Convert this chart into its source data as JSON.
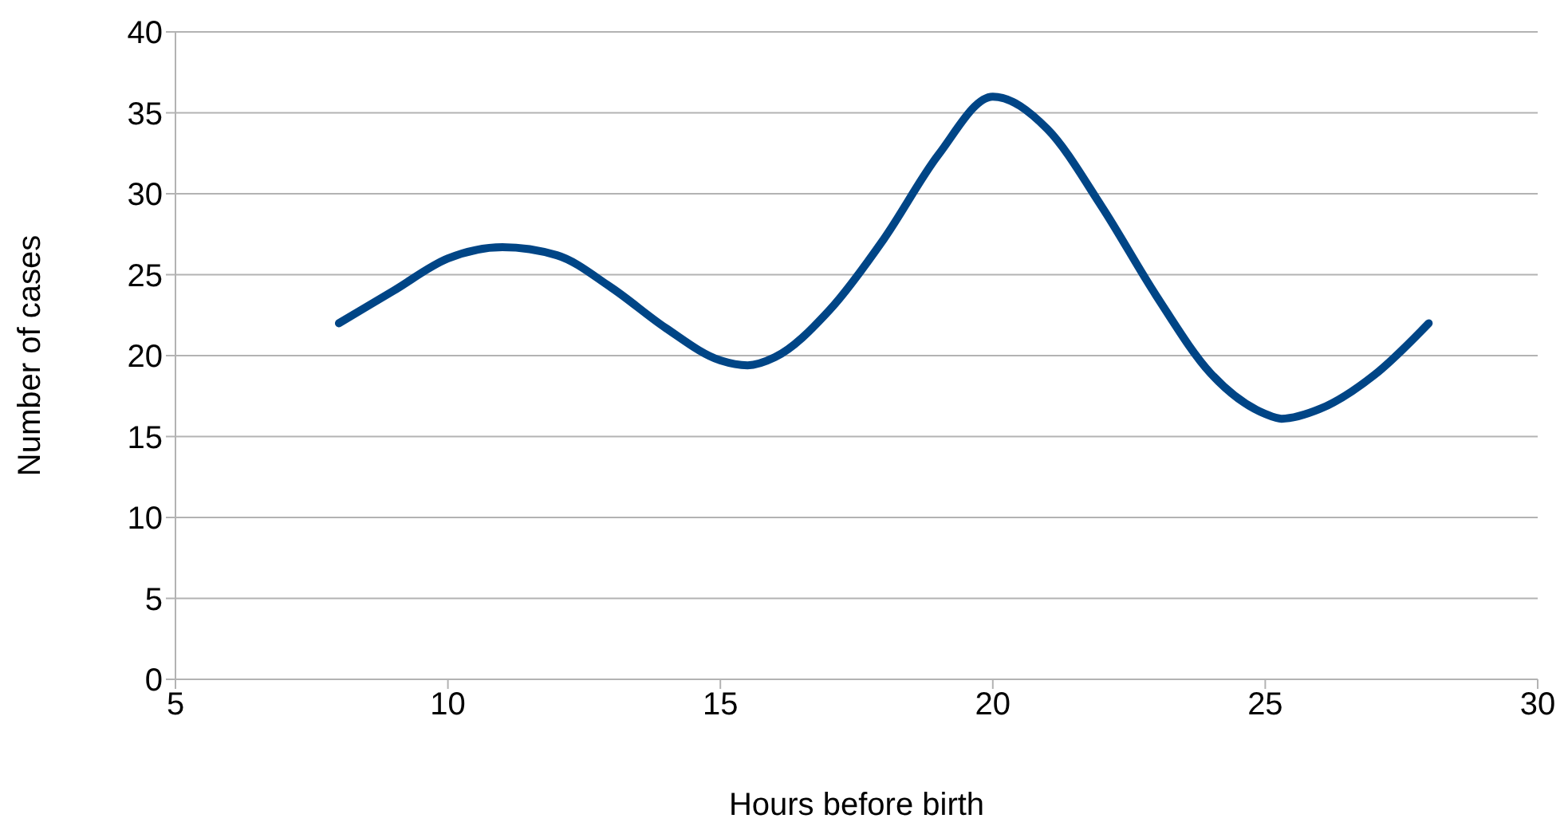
{
  "chart_data": {
    "type": "line",
    "xlabel": "Hours before birth",
    "ylabel": "Number of cases",
    "x": [
      8,
      9,
      10,
      11,
      12,
      13,
      14,
      15,
      15.5,
      16,
      17,
      18,
      19,
      20,
      21,
      22,
      23,
      24,
      25,
      25.3,
      26,
      27,
      28
    ],
    "series": [
      {
        "color": "#004586",
        "values": [
          22,
          24,
          26,
          26.7,
          26.2,
          24.2,
          21.7,
          19.7,
          19.4,
          19.9,
          22.8,
          27.2,
          32.4,
          36,
          34,
          29.2,
          23.7,
          18.9,
          16.4,
          16.1,
          16.7,
          18.8,
          22
        ]
      }
    ],
    "xlim": [
      5,
      30
    ],
    "xticks": [
      5,
      10,
      15,
      20,
      25,
      30
    ],
    "ylim": [
      0,
      40
    ],
    "yticks": [
      0,
      5,
      10,
      15,
      20,
      25,
      30,
      35,
      40
    ],
    "grid": "y",
    "legend": false,
    "marker": "none",
    "line_style": "solid"
  }
}
